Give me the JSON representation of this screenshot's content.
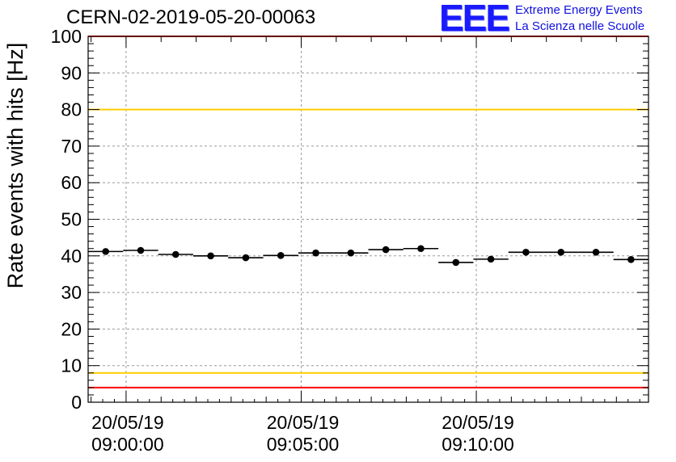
{
  "header": {
    "run_id": "CERN-02-2019-05-20-00063"
  },
  "logo": {
    "mark": "EEE",
    "line1": "Extreme Energy Events",
    "line2": "La Scienza nelle Scuole",
    "color": "#1010e0"
  },
  "chart_data": {
    "type": "scatter",
    "title": "CERN-02-2019-05-20-00063",
    "xlabel": "",
    "ylabel": "Rate events with hits [Hz]",
    "ylim": [
      0,
      100
    ],
    "yticks": [
      0,
      10,
      20,
      30,
      40,
      50,
      60,
      70,
      80,
      90,
      100
    ],
    "xlim": [
      "2019-05-20 08:58:55",
      "2019-05-20 09:14:55"
    ],
    "xticks": [
      {
        "time": "2019-05-20 09:00:00",
        "date_label": "20/05/19",
        "time_label": "09:00:00"
      },
      {
        "time": "2019-05-20 09:05:00",
        "date_label": "20/05/19",
        "time_label": "09:05:00"
      },
      {
        "time": "2019-05-20 09:10:00",
        "date_label": "20/05/19",
        "time_label": "09:10:00"
      }
    ],
    "grid": true,
    "series": [
      {
        "marker": "filled-circle",
        "color": "#000000",
        "bin_width_seconds": 60,
        "points": [
          {
            "x": "2019-05-20 08:59:25",
            "y": 41.2
          },
          {
            "x": "2019-05-20 09:00:25",
            "y": 41.5
          },
          {
            "x": "2019-05-20 09:01:25",
            "y": 40.4
          },
          {
            "x": "2019-05-20 09:02:25",
            "y": 40.0
          },
          {
            "x": "2019-05-20 09:03:25",
            "y": 39.5
          },
          {
            "x": "2019-05-20 09:04:25",
            "y": 40.1
          },
          {
            "x": "2019-05-20 09:05:25",
            "y": 40.8
          },
          {
            "x": "2019-05-20 09:06:25",
            "y": 40.8
          },
          {
            "x": "2019-05-20 09:07:25",
            "y": 41.7
          },
          {
            "x": "2019-05-20 09:08:25",
            "y": 42.0
          },
          {
            "x": "2019-05-20 09:09:25",
            "y": 38.2
          },
          {
            "x": "2019-05-20 09:10:25",
            "y": 39.1
          },
          {
            "x": "2019-05-20 09:11:25",
            "y": 41.0
          },
          {
            "x": "2019-05-20 09:12:25",
            "y": 41.0
          },
          {
            "x": "2019-05-20 09:13:25",
            "y": 41.0
          },
          {
            "x": "2019-05-20 09:14:25",
            "y": 39.0
          }
        ]
      }
    ],
    "reference_lines": [
      {
        "y": 100,
        "color": "#ff0000"
      },
      {
        "y": 80,
        "color": "#ffcc00"
      },
      {
        "y": 8,
        "color": "#ffcc00"
      },
      {
        "y": 4,
        "color": "#ff0000"
      }
    ]
  }
}
